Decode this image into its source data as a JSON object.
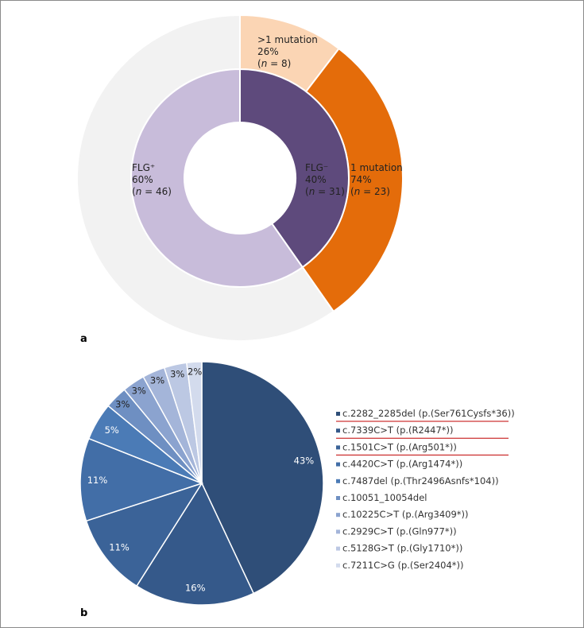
{
  "panels": {
    "a": "a",
    "b": "b"
  },
  "chart_data": [
    {
      "type": "pie",
      "subtype": "nested-donut",
      "inner_ring": [
        {
          "label": "FLG⁻",
          "percent": "40%",
          "n": "31",
          "value": 31,
          "color": "#5e4a7c",
          "text_color": "#ffffff"
        },
        {
          "label": "FLG⁺",
          "percent": "60%",
          "n": "46",
          "value": 46,
          "color": "#c8bcda",
          "text_color": "#222222"
        }
      ],
      "outer_ring": [
        {
          "label": ">1 mutation",
          "percent": "26%",
          "n": "8",
          "value": 8,
          "color": "#fbd5b4",
          "text_color": "#222222"
        },
        {
          "label": "1 mutation",
          "percent": "74%",
          "n": "23",
          "value": 23,
          "color": "#e46c0a",
          "text_color": "#222222"
        },
        {
          "label": "",
          "percent": "",
          "n": "",
          "value": 46,
          "color": "#f2f2f2",
          "text_color": "#222222"
        }
      ],
      "n_prefix": "(",
      "n_italic": "n",
      "n_infix": " = ",
      "n_suffix": ")"
    },
    {
      "type": "pie",
      "slices": [
        {
          "label": "c.2282_2285del (p.(Ser761Cysfs*36))",
          "value": 43,
          "pct_label": "43%",
          "color": "#2f4e78",
          "underline": true
        },
        {
          "label": "c.7339C>T (p.(R2447*))",
          "value": 16,
          "pct_label": "16%",
          "color": "#35598a",
          "underline": true
        },
        {
          "label": "c.1501C>T (p.(Arg501*))",
          "value": 11,
          "pct_label": "11%",
          "color": "#3b6398",
          "underline": true
        },
        {
          "label": "c.4420C>T (p.(Arg1474*))",
          "value": 11,
          "pct_label": "11%",
          "color": "#426ea7",
          "underline": false
        },
        {
          "label": "c.7487del (p.(Thr2496Asnfs*104))",
          "value": 5,
          "pct_label": "5%",
          "color": "#4b7bb6",
          "underline": false
        },
        {
          "label": "c.10051_10054del",
          "value": 3,
          "pct_label": "3%",
          "color": "#6e8fc2",
          "underline": false
        },
        {
          "label": "c.10225C>T (p.(Arg3409*))",
          "value": 3,
          "pct_label": "3%",
          "color": "#8ba3cf",
          "underline": false
        },
        {
          "label": "c.2929C>T (p.(Gln977*))",
          "value": 3,
          "pct_label": "3%",
          "color": "#a4b5d9",
          "underline": false
        },
        {
          "label": "c.5128G>T (p.(Gly1710*))",
          "value": 3,
          "pct_label": "3%",
          "color": "#bcc8e3",
          "underline": false
        },
        {
          "label": "c.7211C>G (p.(Ser2404*))",
          "value": 2,
          "pct_label": "2%",
          "color": "#d3dbed",
          "underline": false
        }
      ],
      "underline_color": "#c00000",
      "legend_position": "right"
    }
  ]
}
